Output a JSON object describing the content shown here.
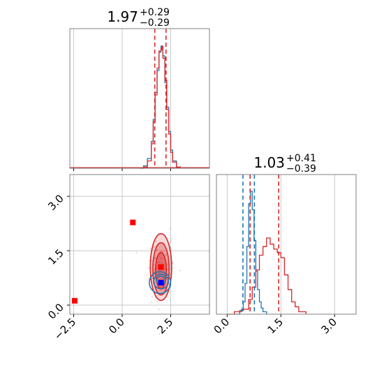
{
  "colors": {
    "red": "#d62728",
    "blue": "#1f77b4",
    "grid": "#c8c8c8",
    "frame": "#808080",
    "marker_red": "#ff0000",
    "marker_blue": "#0000ff"
  },
  "chart_data": [
    {
      "type": "line",
      "panel": "top-left histogram",
      "title": {
        "base": "1.97",
        "plus": "+0.29",
        "minus": "−0.29"
      },
      "x_range": [
        -2.7,
        4.5
      ],
      "x_grid": [
        -2.5,
        0.0,
        2.5
      ],
      "grid": true,
      "series": [
        {
          "color": "#1f77b4",
          "style": "step histogram",
          "x": [
            0.9,
            1.1,
            1.3,
            1.5,
            1.6,
            1.7,
            1.8,
            1.9,
            2.0,
            2.05,
            2.1,
            2.2,
            2.3,
            2.4,
            2.5,
            2.6,
            2.8,
            3.0
          ],
          "y": [
            0.0,
            0.02,
            0.08,
            0.22,
            0.4,
            0.62,
            0.8,
            0.95,
            1.0,
            0.97,
            0.92,
            0.7,
            0.5,
            0.3,
            0.15,
            0.06,
            0.01,
            0.0
          ]
        },
        {
          "color": "#d62728",
          "style": "step histogram",
          "x": [
            0.9,
            1.1,
            1.3,
            1.5,
            1.6,
            1.7,
            1.8,
            1.9,
            2.0,
            2.05,
            2.1,
            2.2,
            2.3,
            2.4,
            2.5,
            2.6,
            2.8,
            3.0
          ],
          "y": [
            0.0,
            0.01,
            0.06,
            0.2,
            0.38,
            0.6,
            0.82,
            0.96,
            0.98,
            1.0,
            0.9,
            0.72,
            0.48,
            0.28,
            0.13,
            0.05,
            0.01,
            0.0
          ]
        }
      ],
      "vlines": [
        {
          "x": 1.68,
          "color": "#d62728",
          "style": "dashed"
        },
        {
          "x": 2.26,
          "color": "#d62728",
          "style": "dashed"
        }
      ]
    },
    {
      "type": "line",
      "panel": "bottom-right histogram",
      "title": {
        "base": "1.03",
        "plus": "+0.41",
        "minus": "−0.39"
      },
      "x_range": [
        -0.3,
        3.6
      ],
      "x_ticks": [
        "0.0",
        "1.5",
        "3.0"
      ],
      "x_tick_values": [
        0.0,
        1.5,
        3.0
      ],
      "grid": true,
      "series": [
        {
          "color": "#1f77b4",
          "style": "step histogram",
          "x": [
            0.2,
            0.35,
            0.45,
            0.5,
            0.55,
            0.6,
            0.65,
            0.7,
            0.75,
            0.8,
            0.85,
            0.9,
            0.95,
            1.0,
            1.1
          ],
          "y": [
            0.0,
            0.03,
            0.1,
            0.25,
            0.55,
            0.9,
            1.0,
            0.85,
            0.6,
            0.35,
            0.2,
            0.1,
            0.05,
            0.02,
            0.0
          ]
        },
        {
          "color": "#d62728",
          "style": "step histogram",
          "x": [
            0.0,
            0.2,
            0.4,
            0.6,
            0.7,
            0.8,
            0.9,
            1.0,
            1.1,
            1.2,
            1.3,
            1.4,
            1.5,
            1.6,
            1.7,
            1.8,
            1.9,
            2.0,
            2.2
          ],
          "y": [
            0.0,
            0.02,
            0.04,
            0.12,
            0.22,
            0.36,
            0.48,
            0.55,
            0.62,
            0.57,
            0.53,
            0.5,
            0.46,
            0.32,
            0.2,
            0.1,
            0.06,
            0.02,
            0.0
          ]
        }
      ],
      "vlines": [
        {
          "x": 0.44,
          "color": "#1f77b4",
          "style": "dashed"
        },
        {
          "x": 0.76,
          "color": "#1f77b4",
          "style": "dashed"
        },
        {
          "x": 0.64,
          "color": "#d62728",
          "style": "dashed"
        },
        {
          "x": 1.44,
          "color": "#d62728",
          "style": "dashed"
        }
      ]
    },
    {
      "type": "scatter",
      "panel": "bottom-left 2D contour",
      "x_range": [
        -2.7,
        4.5
      ],
      "y_range": [
        -0.25,
        3.6
      ],
      "x_ticks": [
        "−2.5",
        "0.0",
        "2.5"
      ],
      "x_tick_values": [
        -2.5,
        0.0,
        2.5
      ],
      "y_ticks": [
        "0.0",
        "1.5",
        "3.0"
      ],
      "y_tick_values": [
        0.0,
        1.5,
        3.0
      ],
      "grid": true,
      "red_contours": [
        {
          "cx": 2.0,
          "cy": 1.05,
          "rx": 0.55,
          "ry": 0.92,
          "fill_opacity": 0.3
        },
        {
          "cx": 2.0,
          "cy": 1.0,
          "rx": 0.42,
          "ry": 0.72,
          "fill_opacity": 0.5
        },
        {
          "cx": 2.0,
          "cy": 0.95,
          "rx": 0.28,
          "ry": 0.5,
          "fill_opacity": 0.7
        }
      ],
      "blue_contours": [
        {
          "cx": 1.95,
          "cy": 0.62,
          "rx": 0.55,
          "ry": 0.3
        },
        {
          "cx": 2.0,
          "cy": 0.65,
          "rx": 0.38,
          "ry": 0.2
        },
        {
          "cx": 2.0,
          "cy": 0.68,
          "rx": 0.22,
          "ry": 0.12
        }
      ],
      "markers": [
        {
          "x": -2.45,
          "y": 0.12,
          "color": "#ff0000",
          "shape": "square"
        },
        {
          "x": 0.55,
          "y": 2.28,
          "color": "#ff0000",
          "shape": "square"
        },
        {
          "x": 2.0,
          "y": 1.05,
          "color": "#ff0000",
          "shape": "square"
        },
        {
          "x": 2.0,
          "y": 0.62,
          "color": "#0000ff",
          "shape": "square"
        }
      ]
    }
  ]
}
